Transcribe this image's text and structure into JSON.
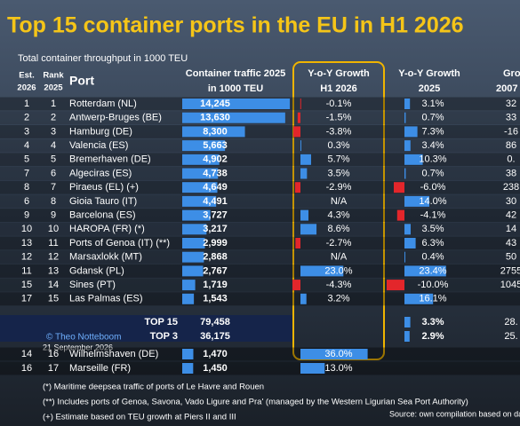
{
  "header": {
    "title": "Top 15 container ports in the EU in H1 2026",
    "subtitle": "Total container throughput in 1000 TEU"
  },
  "table": {
    "columns": {
      "est": [
        "Est.",
        "2026"
      ],
      "rank": [
        "Rank",
        "2025"
      ],
      "port": "Port",
      "traffic": [
        "Container traffic 2025",
        "in 1000 TEU"
      ],
      "h1": [
        "Y-o-Y Growth",
        "H1 2026"
      ],
      "g2025": [
        "Y-o-Y Growth",
        "2025"
      ],
      "g2007": [
        "Gro",
        "2007"
      ]
    },
    "rows": [
      {
        "est": "1",
        "rank": "1",
        "port": "Rotterdam (NL)",
        "traffic": {
          "value": 14245,
          "label": "14,245"
        },
        "h1": {
          "value": -0.1,
          "label": "-0.1%"
        },
        "g2025": {
          "value": 3.1,
          "label": "3.1%"
        },
        "g2007": "32"
      },
      {
        "est": "2",
        "rank": "2",
        "port": "Antwerp-Bruges (BE)",
        "traffic": {
          "value": 13630,
          "label": "13,630"
        },
        "h1": {
          "value": -1.5,
          "label": "-1.5%"
        },
        "g2025": {
          "value": 0.7,
          "label": "0.7%"
        },
        "g2007": "33"
      },
      {
        "est": "3",
        "rank": "3",
        "port": "Hamburg (DE)",
        "traffic": {
          "value": 8300,
          "label": "8,300"
        },
        "h1": {
          "value": -3.8,
          "label": "-3.8%"
        },
        "g2025": {
          "value": 7.3,
          "label": "7.3%"
        },
        "g2007": "-16"
      },
      {
        "est": "4",
        "rank": "4",
        "port": "Valencia (ES)",
        "traffic": {
          "value": 5663,
          "label": "5,663"
        },
        "h1": {
          "value": 0.3,
          "label": "0.3%"
        },
        "g2025": {
          "value": 3.4,
          "label": "3.4%"
        },
        "g2007": "86"
      },
      {
        "est": "5",
        "rank": "5",
        "port": "Bremerhaven (DE)",
        "traffic": {
          "value": 4902,
          "label": "4,902"
        },
        "h1": {
          "value": 5.7,
          "label": "5.7%"
        },
        "g2025": {
          "value": 10.3,
          "label": "10.3%"
        },
        "g2007": "0."
      },
      {
        "est": "7",
        "rank": "6",
        "port": "Algeciras (ES)",
        "traffic": {
          "value": 4738,
          "label": "4,738"
        },
        "h1": {
          "value": 3.5,
          "label": "3.5%"
        },
        "g2025": {
          "value": 0.7,
          "label": "0.7%"
        },
        "g2007": "38"
      },
      {
        "est": "8",
        "rank": "7",
        "port": "Piraeus (EL) (+)",
        "traffic": {
          "value": 4649,
          "label": "4,649"
        },
        "h1": {
          "value": -2.9,
          "label": "-2.9%"
        },
        "g2025": {
          "value": -6.0,
          "label": "-6.0%"
        },
        "g2007": "238"
      },
      {
        "est": "6",
        "rank": "8",
        "port": "Gioia Tauro (IT)",
        "traffic": {
          "value": 4491,
          "label": "4,491"
        },
        "h1": {
          "value": null,
          "label": "N/A"
        },
        "g2025": {
          "value": 14.0,
          "label": "14.0%"
        },
        "g2007": "30"
      },
      {
        "est": "9",
        "rank": "9",
        "port": "Barcelona (ES)",
        "traffic": {
          "value": 3727,
          "label": "3,727"
        },
        "h1": {
          "value": 4.3,
          "label": "4.3%"
        },
        "g2025": {
          "value": -4.1,
          "label": "-4.1%"
        },
        "g2007": "42"
      },
      {
        "est": "10",
        "rank": "10",
        "port": "HAROPA (FR) (*)",
        "traffic": {
          "value": 3217,
          "label": "3,217"
        },
        "h1": {
          "value": 8.6,
          "label": "8.6%"
        },
        "g2025": {
          "value": 3.5,
          "label": "3.5%"
        },
        "g2007": "14"
      },
      {
        "est": "13",
        "rank": "11",
        "port": "Ports of Genoa (IT) (**)",
        "traffic": {
          "value": 2999,
          "label": "2,999"
        },
        "h1": {
          "value": -2.7,
          "label": "-2.7%"
        },
        "g2025": {
          "value": 6.3,
          "label": "6.3%"
        },
        "g2007": "43"
      },
      {
        "est": "12",
        "rank": "12",
        "port": "Marsaxlokk (MT)",
        "traffic": {
          "value": 2868,
          "label": "2,868"
        },
        "h1": {
          "value": null,
          "label": "N/A"
        },
        "g2025": {
          "value": 0.4,
          "label": "0.4%"
        },
        "g2007": "50"
      },
      {
        "est": "11",
        "rank": "13",
        "port": "Gdansk (PL)",
        "traffic": {
          "value": 2767,
          "label": "2,767"
        },
        "h1": {
          "value": 23.0,
          "label": "23.0%"
        },
        "g2025": {
          "value": 23.4,
          "label": "23.4%"
        },
        "g2007": "2755"
      },
      {
        "est": "15",
        "rank": "14",
        "port": "Sines (PT)",
        "traffic": {
          "value": 1719,
          "label": "1,719"
        },
        "h1": {
          "value": -4.3,
          "label": "-4.3%"
        },
        "g2025": {
          "value": -10.0,
          "label": "-10.0%"
        },
        "g2007": "1045"
      },
      {
        "est": "17",
        "rank": "15",
        "port": "Las Palmas (ES)",
        "traffic": {
          "value": 1543,
          "label": "1,543"
        },
        "h1": {
          "value": 3.2,
          "label": "3.2%"
        },
        "g2025": {
          "value": 16.1,
          "label": "16.1%"
        },
        "g2007": null
      }
    ],
    "totals": [
      {
        "port": "TOP 15",
        "traffic": {
          "value": 79458,
          "label": "79,458"
        },
        "g2025": {
          "value": 3.3,
          "label": "3.3%"
        },
        "g2007": "28."
      },
      {
        "port": "TOP 3",
        "traffic": {
          "value": 36175,
          "label": "36,175"
        },
        "g2025": {
          "value": 2.9,
          "label": "2.9%"
        },
        "g2007": "25."
      }
    ],
    "extra_rows": [
      {
        "est": "14",
        "rank": "16",
        "port": "Wilhelmshaven (DE)",
        "traffic": {
          "value": 1470,
          "label": "1,470"
        },
        "h1": {
          "value": 36.0,
          "label": "36.0%"
        }
      },
      {
        "est": "16",
        "rank": "17",
        "port": "Marseille (FR)",
        "traffic": {
          "value": 1450,
          "label": "1,450"
        },
        "h1": {
          "value": 13.0,
          "label": "13.0%"
        }
      }
    ]
  },
  "credit": {
    "author": "© Theo Notteboom",
    "date": "21 September 2026"
  },
  "footnotes": [
    "(*) Maritime deepsea traffic of ports of Le Havre and Rouen",
    "(**) Includes ports of Genoa, Savona, Vado Ligure and Pra' (managed by the Western Ligurian Sea Port Authority)",
    "(+) Estimate based on TEU growth at Piers II and III"
  ],
  "source": "Source: own compilation based on data"
}
